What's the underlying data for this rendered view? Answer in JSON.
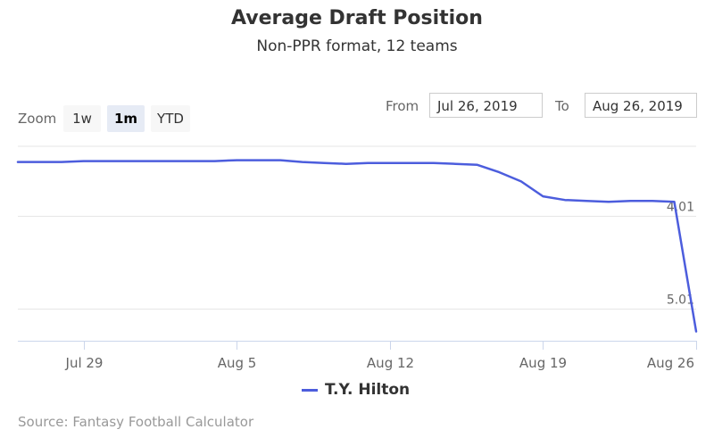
{
  "title": "Average Draft Position",
  "subtitle": "Non-PPR format, 12 teams",
  "zoom": {
    "label": "Zoom",
    "buttons": [
      {
        "label": "1w",
        "active": false
      },
      {
        "label": "1m",
        "active": true
      },
      {
        "label": "YTD",
        "active": false
      }
    ]
  },
  "range": {
    "from_label": "From",
    "from_value": "Jul 26, 2019",
    "to_label": "To",
    "to_value": "Aug 26, 2019"
  },
  "source": "Source: Fantasy Football Calculator",
  "colors": {
    "series": "#4c5ddd",
    "grid": "#e6e6e6",
    "axis": "#ccd6eb"
  },
  "chart_data": {
    "type": "line",
    "title": "Average Draft Position",
    "subtitle": "Non-PPR format, 12 teams",
    "y_reversed": true,
    "ylim": [
      3.25,
      5.35
    ],
    "y_ticks": [
      {
        "label": "4.01",
        "value": 4.0
      },
      {
        "label": "5.01",
        "value": 5.0
      }
    ],
    "xlim": [
      "Jul 26",
      "Aug 26"
    ],
    "x_ticks": [
      "Jul 29",
      "Aug 5",
      "Aug 12",
      "Aug 19",
      "Aug 26"
    ],
    "legend_position": "bottom-center",
    "series": [
      {
        "name": "T.Y. Hilton",
        "color": "#4c5ddd",
        "x": [
          "Jul 26",
          "Jul 27",
          "Jul 28",
          "Jul 29",
          "Jul 30",
          "Jul 31",
          "Aug 1",
          "Aug 2",
          "Aug 3",
          "Aug 4",
          "Aug 5",
          "Aug 6",
          "Aug 7",
          "Aug 8",
          "Aug 9",
          "Aug 10",
          "Aug 11",
          "Aug 12",
          "Aug 13",
          "Aug 14",
          "Aug 15",
          "Aug 16",
          "Aug 17",
          "Aug 18",
          "Aug 19",
          "Aug 20",
          "Aug 21",
          "Aug 22",
          "Aug 23",
          "Aug 24",
          "Aug 25",
          "Aug 26"
        ],
        "values": [
          3.42,
          3.42,
          3.42,
          3.41,
          3.41,
          3.41,
          3.41,
          3.41,
          3.41,
          3.41,
          3.4,
          3.4,
          3.4,
          3.42,
          3.43,
          3.44,
          3.43,
          3.43,
          3.43,
          3.43,
          3.44,
          3.45,
          3.53,
          3.63,
          3.79,
          3.83,
          3.84,
          3.85,
          3.84,
          3.84,
          3.85,
          5.25
        ]
      }
    ]
  }
}
